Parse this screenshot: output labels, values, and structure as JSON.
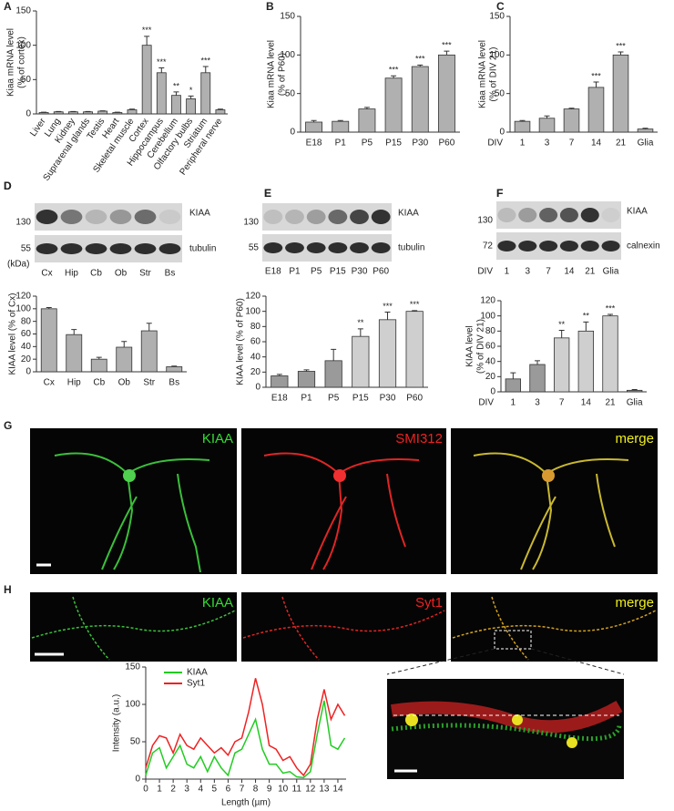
{
  "chart_data": [
    {
      "type": "bar",
      "panel": "A",
      "ylabel": [
        "Kiaa mRNA level",
        "(% of cortex)"
      ],
      "categories": [
        "Liver",
        "Lung",
        "Kidney",
        "Suprarenal glands",
        "Testis",
        "Heart",
        "Skeletal muscle",
        "Cortex",
        "Hippocampus",
        "Cerebellum",
        "Olfactory bulbs",
        "Striatum",
        "Peripheral nerve"
      ],
      "values": [
        2,
        3,
        3,
        3,
        4,
        2,
        6,
        100,
        60,
        27,
        22,
        60,
        6
      ],
      "errors": [
        0.5,
        0.5,
        0.5,
        0.5,
        0.5,
        0.5,
        1,
        13,
        7,
        5,
        4,
        9,
        1
      ],
      "annotations": [
        null,
        null,
        null,
        null,
        null,
        null,
        null,
        "***",
        "***",
        "**",
        "*",
        "***",
        null
      ],
      "color": "#b0b0b0",
      "ylim": [
        0,
        150
      ],
      "yticks": [
        0,
        50,
        100,
        150
      ]
    },
    {
      "type": "bar",
      "panel": "B",
      "ylabel": [
        "Kiaa mRNA level",
        "(% of P60)"
      ],
      "categories": [
        "E18",
        "P1",
        "P5",
        "P15",
        "P30",
        "P60"
      ],
      "values": [
        13,
        14,
        30,
        70,
        85,
        100
      ],
      "errors": [
        2,
        1,
        2,
        3,
        2,
        5
      ],
      "annotations": [
        null,
        null,
        null,
        "***",
        "***",
        "***"
      ],
      "color": "#b0b0b0",
      "ylim": [
        0,
        150
      ],
      "yticks": [
        0,
        50,
        100,
        150
      ]
    },
    {
      "type": "bar",
      "panel": "C",
      "ylabel": [
        "Kiaa mRNA level",
        "(% of DIV 21)"
      ],
      "x_prefix": "DIV",
      "categories": [
        "1",
        "3",
        "7",
        "14",
        "21",
        "Glia"
      ],
      "values": [
        14,
        18,
        30,
        58,
        100,
        4
      ],
      "errors": [
        1,
        3,
        1,
        7,
        4,
        1
      ],
      "annotations": [
        null,
        null,
        null,
        "***",
        "***",
        null
      ],
      "color": "#b0b0b0",
      "ylim": [
        0,
        150
      ],
      "yticks": [
        0,
        50,
        100,
        150
      ]
    },
    {
      "type": "bar",
      "panel": "D",
      "ylabel": [
        "KIAA level (% of Cx)"
      ],
      "categories": [
        "Cx",
        "Hip",
        "Cb",
        "Ob",
        "Str",
        "Bs"
      ],
      "values": [
        100,
        59,
        20,
        39,
        65,
        8
      ],
      "errors": [
        2,
        8,
        3,
        9,
        12,
        1
      ],
      "color": "#b0b0b0",
      "ylim": [
        0,
        120
      ],
      "yticks": [
        0,
        20,
        40,
        60,
        80,
        100,
        120
      ]
    },
    {
      "type": "bar",
      "panel": "E",
      "ylabel": [
        "KIAA level (% of P60)"
      ],
      "categories": [
        "E18",
        "P1",
        "P5",
        "P15",
        "P30",
        "P60"
      ],
      "values": [
        15,
        21,
        35,
        67,
        89,
        100
      ],
      "errors": [
        2,
        2,
        15,
        10,
        10,
        1
      ],
      "annotations": [
        null,
        null,
        null,
        "**",
        "***",
        "***"
      ],
      "colors": [
        "#9a9a9a",
        "#9a9a9a",
        "#9a9a9a",
        "#cfcfcf",
        "#cfcfcf",
        "#cfcfcf"
      ],
      "ylim": [
        0,
        120
      ],
      "yticks": [
        0,
        20,
        40,
        60,
        80,
        100,
        120
      ]
    },
    {
      "type": "bar",
      "panel": "F",
      "ylabel": [
        "KIAA level",
        "(% of DIV 21)"
      ],
      "x_prefix": "DIV",
      "categories": [
        "1",
        "3",
        "7",
        "14",
        "21",
        "Glia"
      ],
      "values": [
        17,
        36,
        71,
        80,
        100,
        2
      ],
      "errors": [
        8,
        5,
        10,
        12,
        2,
        1
      ],
      "annotations": [
        null,
        null,
        "**",
        "**",
        "***",
        null
      ],
      "colors": [
        "#9a9a9a",
        "#9a9a9a",
        "#cfcfcf",
        "#cfcfcf",
        "#cfcfcf",
        "#9a9a9a"
      ],
      "ylim": [
        0,
        120
      ],
      "yticks": [
        0,
        20,
        40,
        60,
        80,
        100,
        120
      ]
    },
    {
      "type": "line",
      "ylabel": [
        "Intensity (a.u.)"
      ],
      "xlabel": "Length (µm)",
      "x": [
        0,
        0.5,
        1,
        1.5,
        2,
        2.5,
        3,
        3.5,
        4,
        4.5,
        5,
        5.5,
        6,
        6.5,
        7,
        7.5,
        8,
        8.5,
        9,
        9.5,
        10,
        10.5,
        11,
        11.5,
        12,
        12.5,
        13,
        13.5,
        14,
        14.5
      ],
      "series": [
        {
          "name": "KIAA",
          "color": "#22cc22",
          "values": [
            5,
            35,
            42,
            15,
            30,
            45,
            20,
            15,
            30,
            10,
            30,
            15,
            5,
            35,
            40,
            60,
            80,
            40,
            20,
            20,
            8,
            10,
            3,
            2,
            10,
            60,
            105,
            45,
            40,
            55
          ]
        },
        {
          "name": "Syt1",
          "color": "#ee2222",
          "values": [
            15,
            45,
            58,
            55,
            35,
            60,
            45,
            40,
            55,
            45,
            35,
            42,
            32,
            50,
            55,
            90,
            135,
            100,
            45,
            40,
            25,
            30,
            15,
            5,
            20,
            80,
            120,
            80,
            100,
            85
          ]
        }
      ],
      "xlim": [
        0,
        14.6
      ],
      "xticks": [
        0,
        1,
        2,
        3,
        4,
        5,
        6,
        7,
        8,
        9,
        10,
        11,
        12,
        13,
        14
      ],
      "ylim": [
        0,
        150
      ],
      "yticks": [
        0,
        50,
        100,
        150
      ],
      "legend": "top"
    }
  ],
  "blots": [
    {
      "panel": "D",
      "lanes": [
        "Cx",
        "Hip",
        "Cb",
        "Ob",
        "Str",
        "Bs"
      ],
      "unit": "(kDa)",
      "bands": [
        {
          "label": "KIAA",
          "marker": 130
        },
        {
          "label": "tubulin",
          "marker": 55
        }
      ]
    },
    {
      "panel": "E",
      "lanes": [
        "E18",
        "P1",
        "P5",
        "P15",
        "P30",
        "P60"
      ],
      "bands": [
        {
          "label": "KIAA",
          "marker": 130
        },
        {
          "label": "tubulin",
          "marker": 55
        }
      ]
    },
    {
      "panel": "F",
      "lane_prefix": "DIV",
      "lanes": [
        "1",
        "3",
        "7",
        "14",
        "21",
        "Glia"
      ],
      "bands": [
        {
          "label": "KIAA",
          "marker": 130
        },
        {
          "label": "calnexin",
          "marker": 72
        }
      ]
    }
  ],
  "images": [
    {
      "panel": "G",
      "labels": [
        "KIAA",
        "SMI312",
        "merge"
      ]
    },
    {
      "panel": "H",
      "labels": [
        "KIAA",
        "Syt1",
        "merge"
      ]
    }
  ]
}
